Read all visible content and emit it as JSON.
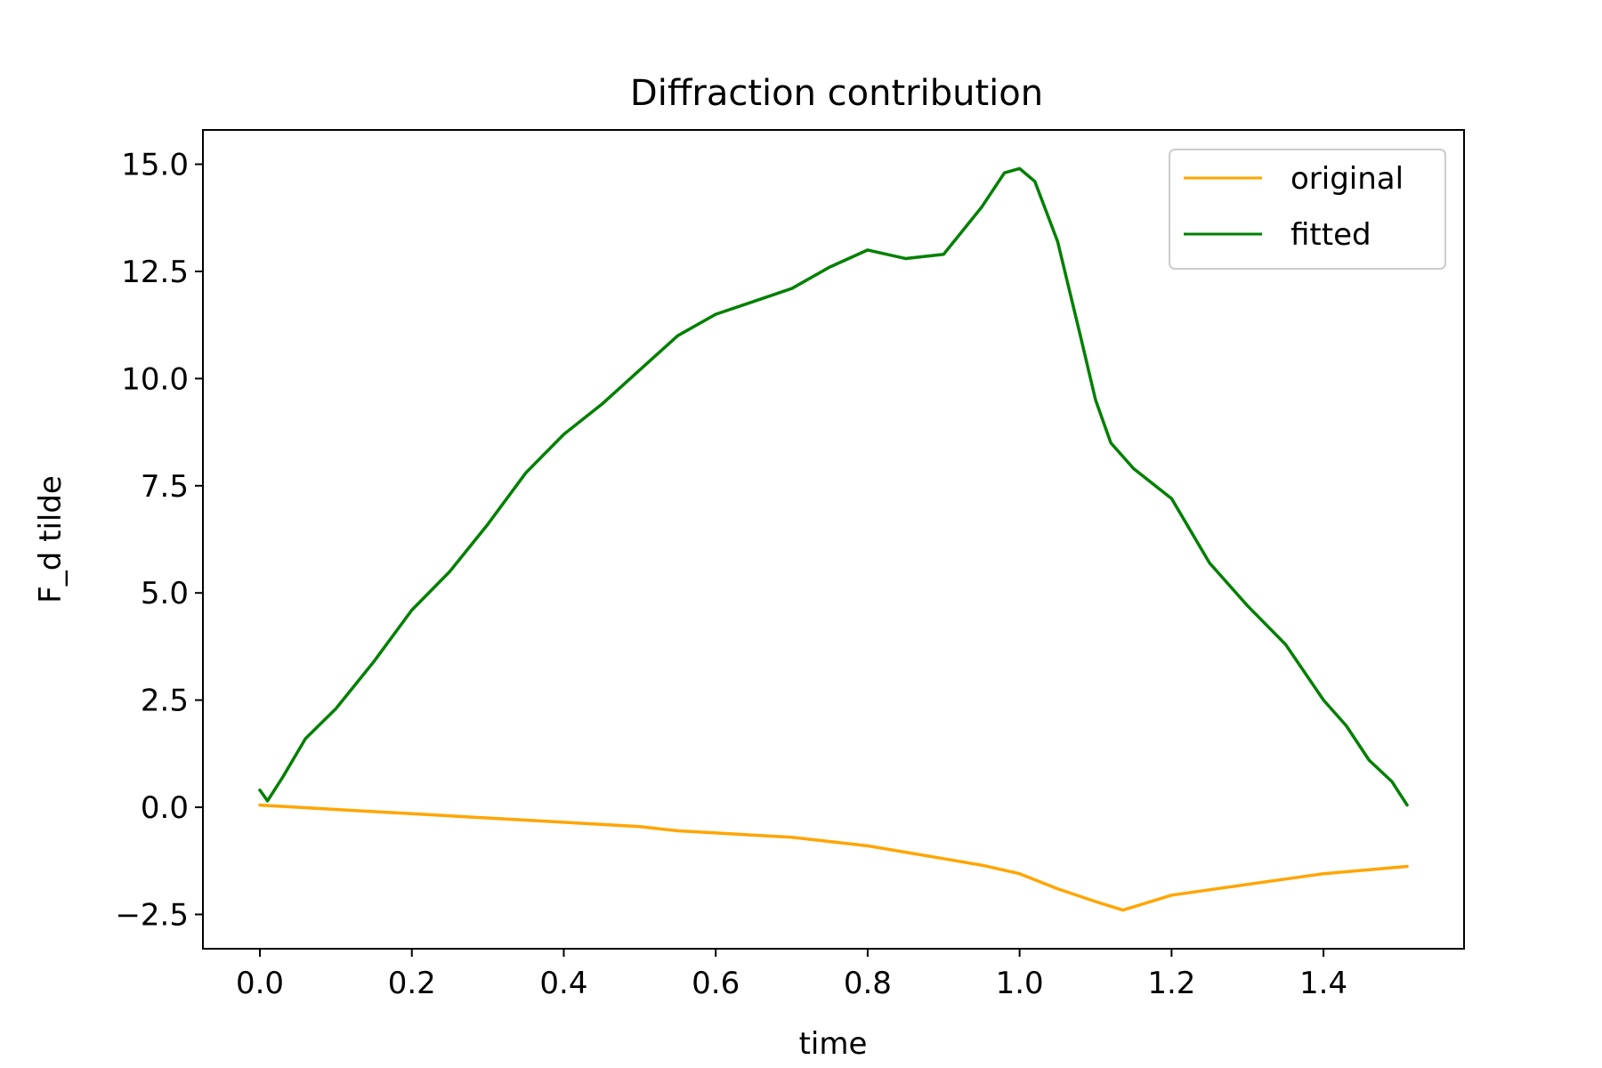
{
  "chart_data": {
    "type": "line",
    "title": "Diffraction contribution",
    "xlabel": "time",
    "ylabel": "F_d tilde",
    "xlim": [
      -0.075,
      1.585
    ],
    "ylim": [
      -3.3,
      15.8
    ],
    "xticks": [
      0.0,
      0.2,
      0.4,
      0.6,
      0.8,
      1.0,
      1.2,
      1.4
    ],
    "xtick_labels": [
      "0.0",
      "0.2",
      "0.4",
      "0.6",
      "0.8",
      "1.0",
      "1.2",
      "1.4"
    ],
    "yticks": [
      -2.5,
      0.0,
      2.5,
      5.0,
      7.5,
      10.0,
      12.5,
      15.0
    ],
    "ytick_labels": [
      "−2.5",
      "0.0",
      "2.5",
      "5.0",
      "7.5",
      "10.0",
      "12.5",
      "15.0"
    ],
    "grid": false,
    "legend_position": "top-right",
    "series": [
      {
        "name": "original",
        "color": "#ffa500",
        "x": [
          0.0,
          0.1,
          0.2,
          0.3,
          0.4,
          0.5,
          0.55,
          0.6,
          0.65,
          0.7,
          0.8,
          0.9,
          0.95,
          1.0,
          1.05,
          1.1,
          1.136,
          1.2,
          1.3,
          1.4,
          1.51
        ],
        "y": [
          0.05,
          -0.05,
          -0.15,
          -0.25,
          -0.35,
          -0.45,
          -0.55,
          -0.6,
          -0.65,
          -0.7,
          -0.9,
          -1.2,
          -1.35,
          -1.55,
          -1.9,
          -2.2,
          -2.4,
          -2.05,
          -1.8,
          -1.55,
          -1.38
        ]
      },
      {
        "name": "fitted",
        "color": "#008000",
        "x": [
          0.0,
          0.01,
          0.03,
          0.06,
          0.1,
          0.15,
          0.2,
          0.25,
          0.3,
          0.35,
          0.4,
          0.45,
          0.5,
          0.55,
          0.6,
          0.65,
          0.7,
          0.75,
          0.8,
          0.85,
          0.9,
          0.95,
          0.98,
          1.0,
          1.02,
          1.05,
          1.08,
          1.1,
          1.12,
          1.15,
          1.2,
          1.25,
          1.3,
          1.35,
          1.4,
          1.43,
          1.46,
          1.49,
          1.51
        ],
        "y": [
          0.4,
          0.15,
          0.7,
          1.6,
          2.3,
          3.4,
          4.6,
          5.5,
          6.6,
          7.8,
          8.7,
          9.4,
          10.2,
          11.0,
          11.5,
          11.8,
          12.1,
          12.6,
          13.0,
          12.8,
          12.9,
          14.0,
          14.8,
          14.9,
          14.6,
          13.2,
          11.0,
          9.5,
          8.5,
          7.9,
          7.2,
          5.7,
          4.7,
          3.8,
          2.5,
          1.9,
          1.1,
          0.6,
          0.05
        ]
      }
    ]
  }
}
